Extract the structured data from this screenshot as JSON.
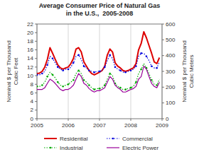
{
  "chart_data": {
    "type": "line",
    "title": "Average Consumer Price of Natural Gas\nin the U.S.,  2005-2008",
    "y_label": "Nominal $ per Thousand\nCubic Feet",
    "y2_label": "Nominal $ per Thousand\nCubic Meters",
    "x": [
      2005,
      2005.0833333333,
      2005.1666666667,
      2005.25,
      2005.3333333333,
      2005.4166666667,
      2005.5,
      2005.5833333333,
      2005.6666666667,
      2005.75,
      2005.8333333333,
      2005.9166666667,
      2006,
      2006.0833333333,
      2006.1666666667,
      2006.25,
      2006.3333333333,
      2006.4166666667,
      2006.5,
      2006.5833333333,
      2006.6666666667,
      2006.75,
      2006.8333333333,
      2006.9166666667,
      2007,
      2007.0833333333,
      2007.1666666667,
      2007.25,
      2007.3333333333,
      2007.4166666667,
      2007.5,
      2007.5833333333,
      2007.6666666667,
      2007.75,
      2007.8333333333,
      2007.9166666667,
      2008,
      2008.0833333333,
      2008.1666666667,
      2008.25,
      2008.3333333333,
      2008.4166666667,
      2008.5,
      2008.5833333333,
      2008.6666666667,
      2008.75,
      2008.8333333333,
      2008.9166666667
    ],
    "xlim": [
      2005,
      2009
    ],
    "xticks": [
      2005,
      2006,
      2007,
      2008,
      2009
    ],
    "ylim": [
      0,
      22
    ],
    "yticks": [
      0,
      2,
      4,
      6,
      8,
      10,
      12,
      14,
      16,
      18,
      20,
      22
    ],
    "y2lim": [
      0,
      600
    ],
    "y2ticks": [
      0,
      100,
      200,
      300,
      400,
      500,
      600
    ],
    "grid": "x",
    "legend": "bottom",
    "series": [
      {
        "name": "Residential",
        "color": "#dd0000",
        "line_style": "solid",
        "values": [
          10.5,
          10.6,
          11.0,
          12.0,
          13.8,
          16.5,
          15.2,
          13.8,
          12.5,
          11.8,
          11.5,
          11.8,
          12.0,
          12.8,
          14.0,
          16.2,
          16.5,
          15.5,
          13.2,
          12.2,
          11.2,
          10.5,
          10.2,
          10.5,
          10.8,
          11.2,
          12.2,
          14.8,
          16.2,
          15.5,
          13.0,
          12.2,
          11.8,
          11.2,
          11.0,
          11.2,
          11.5,
          11.8,
          12.8,
          16.0,
          17.5,
          20.2,
          18.8,
          17.0,
          15.2,
          13.2,
          12.8,
          14.2
        ]
      },
      {
        "name": "Commercial",
        "color": "#0000dd",
        "line_style": "dotted",
        "marker": "dot",
        "values": [
          10.2,
          10.2,
          10.5,
          11.0,
          12.5,
          14.5,
          14.0,
          13.0,
          12.0,
          11.5,
          11.2,
          11.5,
          11.5,
          12.0,
          13.0,
          14.5,
          14.8,
          13.8,
          12.2,
          11.8,
          11.2,
          11.0,
          10.8,
          11.0,
          11.0,
          11.2,
          12.0,
          13.5,
          14.8,
          14.0,
          12.0,
          11.5,
          11.2,
          10.8,
          10.8,
          11.0,
          11.2,
          11.5,
          12.2,
          14.5,
          15.2,
          15.2,
          14.5,
          13.5,
          12.2,
          11.8,
          11.8,
          13.2
        ]
      },
      {
        "name": "Industrial",
        "color": "#00aa00",
        "line_style": "dotted",
        "marker": "dot",
        "values": [
          7.5,
          7.5,
          7.8,
          8.5,
          9.8,
          10.8,
          10.2,
          9.5,
          8.5,
          7.8,
          7.5,
          7.8,
          8.0,
          8.5,
          9.0,
          10.5,
          11.2,
          10.5,
          9.0,
          8.5,
          7.8,
          7.2,
          6.8,
          7.0,
          7.0,
          7.2,
          7.8,
          9.2,
          10.5,
          10.0,
          8.2,
          7.5,
          7.2,
          6.8,
          6.8,
          7.0,
          7.2,
          7.5,
          8.5,
          10.5,
          11.5,
          12.8,
          11.8,
          10.5,
          9.0,
          8.0,
          7.8,
          9.2
        ]
      },
      {
        "name": "Electric Power",
        "color": "#990099",
        "line_style": "solid",
        "values": [
          6.8,
          6.8,
          6.8,
          7.2,
          8.2,
          9.2,
          8.8,
          8.2,
          7.5,
          6.8,
          6.5,
          6.8,
          6.8,
          7.2,
          7.8,
          9.2,
          10.5,
          9.8,
          8.2,
          7.8,
          7.0,
          6.5,
          6.2,
          6.5,
          6.5,
          6.8,
          7.2,
          8.5,
          9.8,
          9.2,
          7.8,
          7.2,
          6.8,
          6.2,
          6.2,
          6.5,
          6.8,
          7.0,
          7.5,
          9.2,
          9.8,
          12.2,
          11.5,
          9.8,
          8.2,
          7.5,
          7.2,
          8.5
        ]
      }
    ]
  }
}
